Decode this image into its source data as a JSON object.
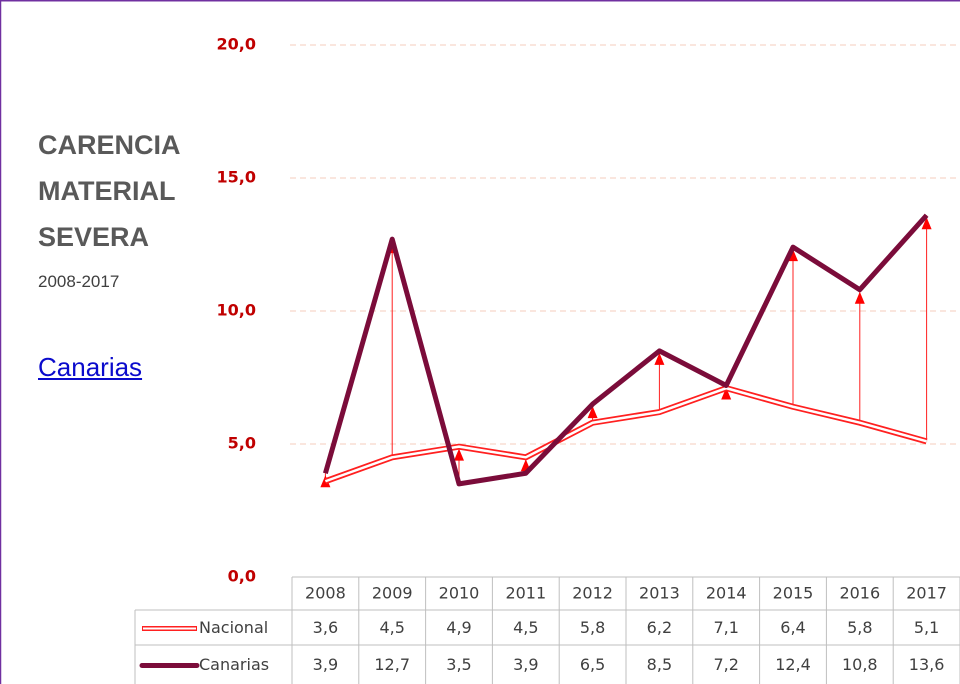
{
  "chart_data": {
    "type": "line",
    "title": "CARENCIA MATERIAL SEVERA",
    "subtitle": "2008-2017",
    "region": "Canarias",
    "categories": [
      "2008",
      "2009",
      "2010",
      "2011",
      "2012",
      "2013",
      "2014",
      "2015",
      "2016",
      "2017"
    ],
    "series": [
      {
        "name": "Nacional",
        "color": "#ff2020",
        "values": [
          3.6,
          4.5,
          4.9,
          4.5,
          5.8,
          6.2,
          7.1,
          6.4,
          5.8,
          5.1
        ],
        "value_labels": [
          "3,6",
          "4,5",
          "4,9",
          "4,5",
          "5,8",
          "6,2",
          "7,1",
          "6,4",
          "5,8",
          "5,1"
        ]
      },
      {
        "name": "Canarias",
        "color": "#7b0c3a",
        "values": [
          3.9,
          12.7,
          3.5,
          3.9,
          6.5,
          8.5,
          7.2,
          12.4,
          10.8,
          13.6
        ],
        "value_labels": [
          "3,9",
          "12,7",
          "3,5",
          "3,9",
          "6,5",
          "8,5",
          "7,2",
          "12,4",
          "10,8",
          "13,6"
        ]
      }
    ],
    "ylim": [
      0,
      20
    ],
    "yticks": [
      {
        "value": 0,
        "label": "0,0"
      },
      {
        "value": 5,
        "label": "5,0"
      },
      {
        "value": 10,
        "label": "10,0"
      },
      {
        "value": 15,
        "label": "15,0"
      },
      {
        "value": 20,
        "label": "20,0"
      }
    ],
    "grid": true
  }
}
